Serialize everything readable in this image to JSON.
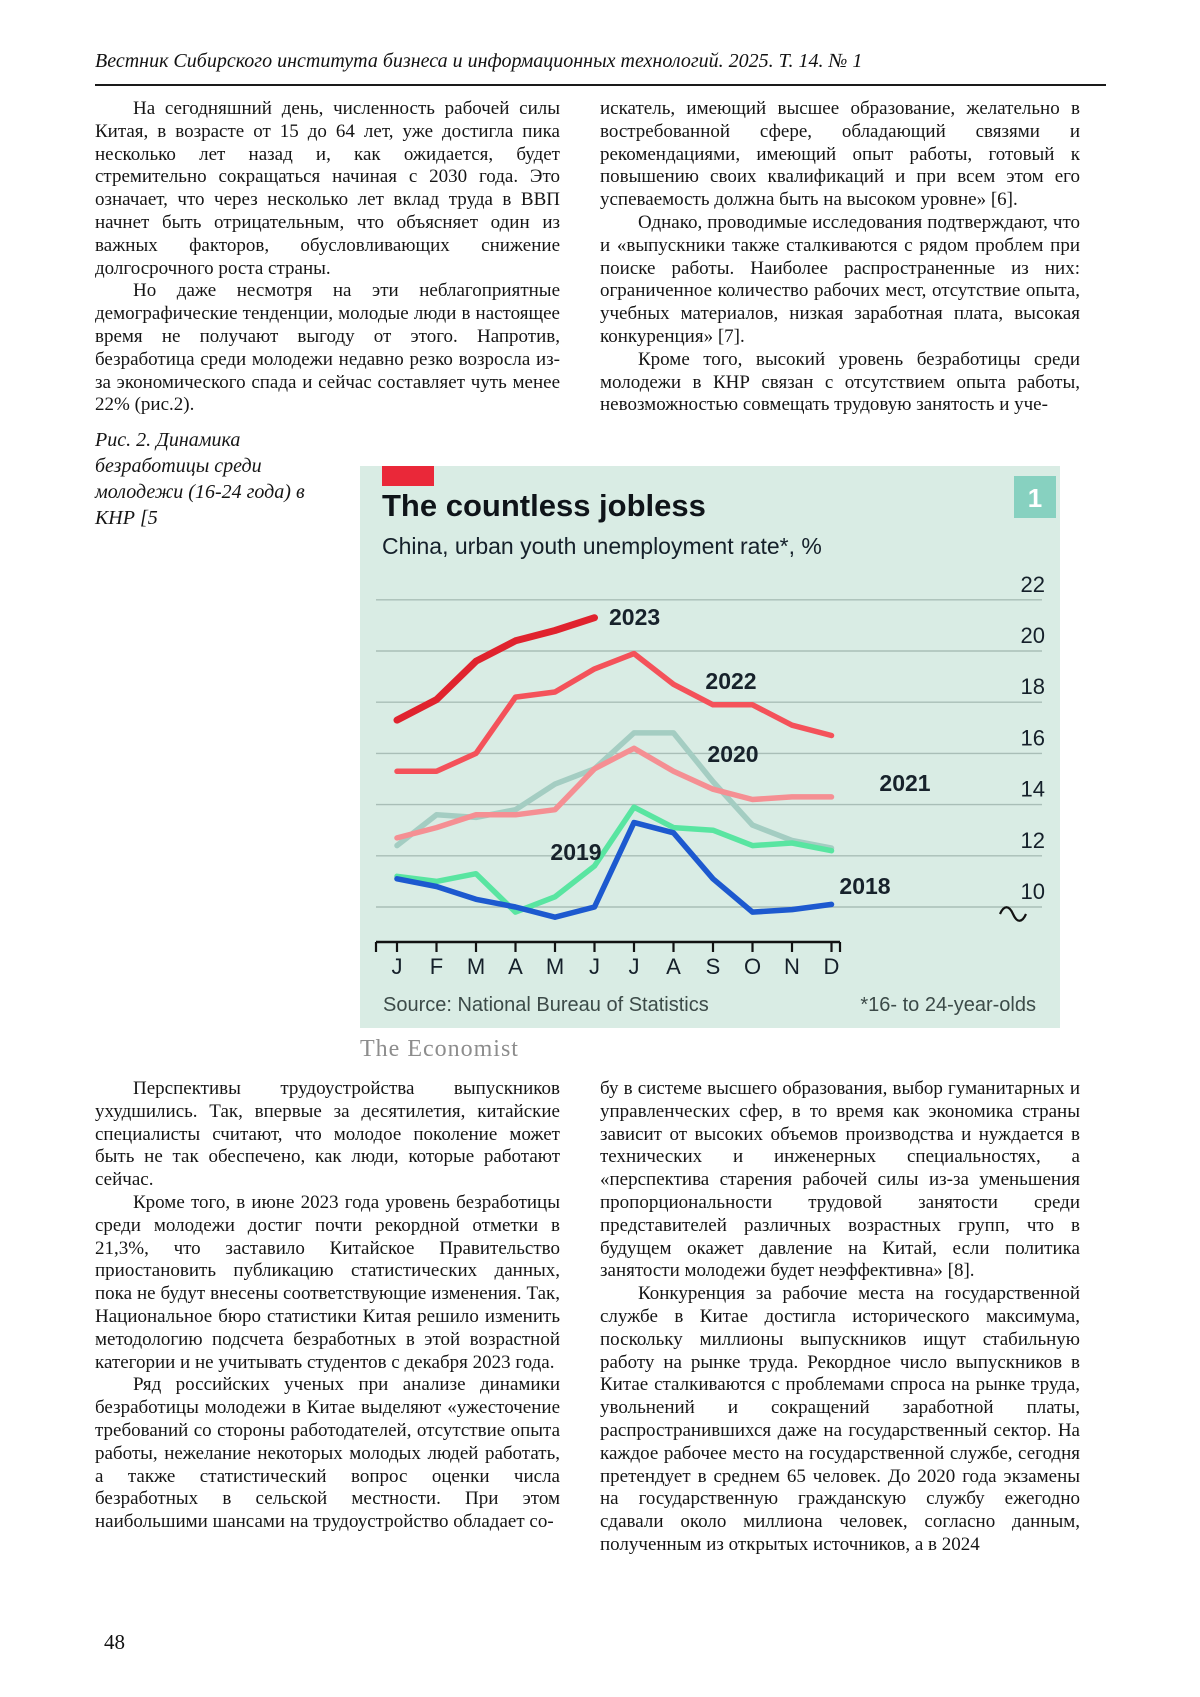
{
  "header": {
    "journal_line": "Вестник Сибирского института бизнеса и информационных технологий. 2025. Т. 14. № 1"
  },
  "footer": {
    "page_number": "48"
  },
  "article": {
    "col_top_left": [
      {
        "indent": true,
        "text": "На сегодняшний день, численность рабочей силы Китая, в возрасте от 15 до 64 лет, уже достигла пика несколько лет назад и, как ожидается, будет стремительно сокращаться начиная с 2030 года. Это означает, что через несколько лет вклад труда в ВВП начнет быть отрицательным, что объясняет один из важных факторов, обусловливающих снижение долгосрочного роста страны."
      },
      {
        "indent": true,
        "text": "Но даже несмотря на эти неблагоприятные демографические тенденции, молодые люди в настоящее время не получают выгоду от этого. Напротив, безработица среди молодежи недавно резко возросла из-за экономического спада и сейчас составляет чуть менее 22% (рис.2)."
      }
    ],
    "col_top_right": [
      {
        "indent": false,
        "text": "искатель, имеющий высшее образование, желательно в востребованной сфере, обладающий связями и рекомендациями, имеющий опыт работы, готовый к повышению своих квалификаций и при всем этом его успеваемость должна быть на высоком уровне» [6]."
      },
      {
        "indent": true,
        "text": "Однако, проводимые исследования подтверждают, что и «выпускники также сталкиваются с рядом проблем при поиске работы. Наиболее распространенные из них: ограниченное количество рабочих мест, отсутствие опыта, учебных материалов, низкая заработная плата, высокая конкуренция» [7]."
      },
      {
        "indent": true,
        "text": "Кроме того, высокий уровень безработицы среди молодежи в КНР связан с отсутствием опыта работы, невозможностью совмещать трудовую занятость и уче-"
      }
    ],
    "figure_caption": "Рис. 2. Динамика безработицы среди молодежи (16-24 года) в КНР [5",
    "figure_credit": "The Economist",
    "col_bottom_left": [
      {
        "indent": true,
        "text": "Перспективы трудоустройства выпускников ухудшились. Так, впервые за десятилетия, китайские специалисты считают, что молодое поколение может быть не так обеспечено, как люди, которые работают сейчас."
      },
      {
        "indent": true,
        "text": "Кроме того, в июне 2023 года уровень безработицы среди молодежи достиг почти рекордной отметки в 21,3%, что заставило Китайское Правительство приостановить публикацию статистических данных, пока не будут внесены соответствующие изменения. Так, Национальное бюро статистики Китая решило изменить методологию подсчета безработных в этой возрастной категории и не учитывать студентов с декабря 2023 года."
      },
      {
        "indent": true,
        "text": "Ряд российских ученых при анализе динамики безработицы молодежи в Китае выделяют «ужесточение требований со стороны работодателей, отсутствие опыта работы, нежелание некоторых молодых людей работать, а также статистический вопрос оценки числа безработных в сельской местности. При этом наибольшими шансами на трудоустройство обладает со-"
      }
    ],
    "col_bottom_right": [
      {
        "indent": false,
        "text": "бу в системе высшего образования, выбор гуманитарных и управленческих сфер, в то время как экономика страны зависит от высоких объемов производства и нуждается в технических и инженерных специальностях, а «перспектива старения рабочей силы из-за уменьшения пропорциональности трудовой занятости среди представителей различных возрастных групп, что в будущем окажет давление на Китай, если политика занятости молодежи будет неэффективна» [8]."
      },
      {
        "indent": true,
        "text": "Конкуренция за рабочие места на государственной службе в Китае достигла исторического максимума, поскольку миллионы выпускников ищут стабильную работу на рынке труда. Рекордное число выпускников в Китае сталкиваются с проблемами спроса на рынке труда, увольнений и сокращений заработной платы, распространившихся даже на государственный сектор. На каждое рабочее место на государственной службе, сегодня претендует в среднем 65 человек. До 2020 года экзамены на государственную гражданскую службу ежегодно сдавали около миллиона человек, согласно данным, полученным из открытых источников, а в 2024"
      }
    ]
  },
  "chart_data": {
    "type": "line",
    "title": "The countless jobless",
    "subtitle": "China, urban youth unemployment rate*, %",
    "panel_badge": "1",
    "source": "Source: National Bureau of Statistics",
    "footnote": "*16- to 24-year-olds",
    "x_labels": [
      "J",
      "F",
      "M",
      "A",
      "M",
      "J",
      "J",
      "A",
      "S",
      "O",
      "N",
      "D"
    ],
    "y_ticks": [
      22,
      20,
      18,
      16,
      14,
      12,
      10
    ],
    "ylim": [
      10,
      22
    ],
    "axis_break": true,
    "grid": true,
    "legend_position": "inline-labels",
    "colors": {
      "background": "#d9ece4",
      "tab_red": "#ea2839",
      "badge": "#87d1c0",
      "gridline": "#a9beb7",
      "axis": "#121212",
      "text": "#15202a",
      "year_label": "#17222b",
      "source_text": "#3c4a48"
    },
    "series": [
      {
        "name": "2020",
        "color": "#a4cdc2",
        "width": 5.5,
        "values": [
          12.4,
          13.6,
          13.5,
          13.8,
          14.8,
          15.4,
          16.8,
          16.8,
          14.9,
          13.2,
          12.6,
          12.3
        ],
        "label_pos": [
          373,
          296
        ],
        "label_anchor": "middle"
      },
      {
        "name": "2019",
        "color": "#59e5a1",
        "width": 5.5,
        "values": [
          11.2,
          11.0,
          11.3,
          9.8,
          10.4,
          11.6,
          13.9,
          13.1,
          13.0,
          12.4,
          12.5,
          12.2
        ],
        "label_pos": [
          216,
          394
        ],
        "label_anchor": "middle"
      },
      {
        "name": "2018",
        "color": "#1d59cf",
        "width": 5.5,
        "values": [
          11.1,
          10.8,
          10.3,
          10.0,
          9.6,
          10.0,
          13.3,
          12.9,
          11.1,
          9.8,
          9.9,
          10.1
        ],
        "label_pos": [
          505,
          428
        ],
        "label_anchor": "middle"
      },
      {
        "name": "2021",
        "color": "#f58f93",
        "width": 5.5,
        "values": [
          12.7,
          13.1,
          13.6,
          13.6,
          13.8,
          15.4,
          16.2,
          15.3,
          14.6,
          14.2,
          14.3,
          14.3
        ],
        "label_pos": [
          545,
          325
        ],
        "label_anchor": "middle"
      },
      {
        "name": "2022",
        "color": "#f4525a",
        "width": 5.5,
        "values": [
          15.3,
          15.3,
          16.0,
          18.2,
          18.4,
          19.3,
          19.9,
          18.7,
          17.9,
          17.9,
          17.1,
          16.7
        ],
        "label_pos": [
          371,
          223
        ],
        "label_anchor": "middle"
      },
      {
        "name": "2023",
        "color": "#e0232e",
        "width": 7,
        "values": [
          17.3,
          18.1,
          19.6,
          20.4,
          20.8,
          21.3
        ],
        "label_pos": [
          249,
          159
        ],
        "label_anchor": "start"
      }
    ]
  }
}
